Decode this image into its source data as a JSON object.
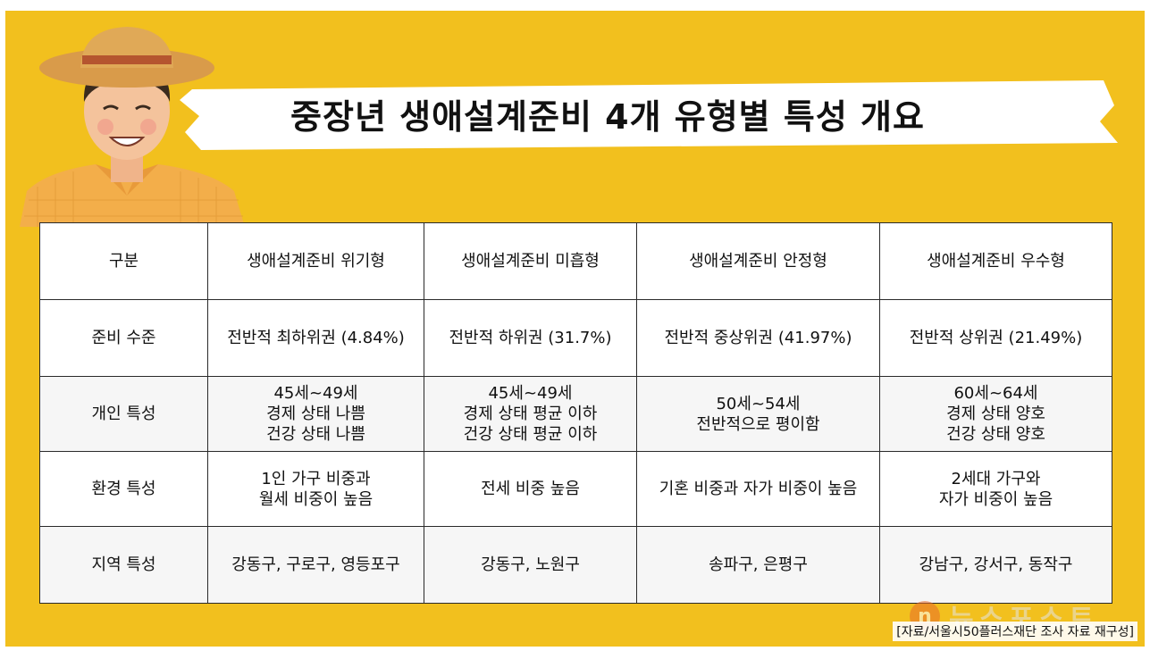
{
  "title": "중장년 생애설계준비 4개 유형별 특성 개요",
  "colors": {
    "background": "#f2c01e",
    "border": "#2a2a2a",
    "title_text": "#111111"
  },
  "table": {
    "headers": [
      "구분",
      "생애설계준비 위기형",
      "생애설계준비 미흡형",
      "생애설계준비 안정형",
      "생애설계준비 우수형"
    ],
    "rows": [
      {
        "label": "준비 수준",
        "cells": [
          [
            "전반적 최하위권 (4.84%)"
          ],
          [
            "전반적 하위권 (31.7%)"
          ],
          [
            "전반적 중상위권 (41.97%)"
          ],
          [
            "전반적 상위권 (21.49%)"
          ]
        ]
      },
      {
        "label": "개인 특성",
        "cells": [
          [
            "45세~49세",
            "경제 상태 나쁨",
            "건강 상태 나쁨"
          ],
          [
            "45세~49세",
            "경제 상태 평균 이하",
            "건강 상태 평균 이하"
          ],
          [
            "50세~54세",
            "전반적으로 평이함"
          ],
          [
            "60세~64세",
            "경제 상태 양호",
            "건강 상태 양호"
          ]
        ]
      },
      {
        "label": "환경 특성",
        "cells": [
          [
            "1인 가구 비중과",
            "월세 비중이 높음"
          ],
          [
            "전세 비중 높음"
          ],
          [
            "기혼 비중과 자가 비중이 높음"
          ],
          [
            "2세대 가구와",
            "자가 비중이 높음"
          ]
        ]
      },
      {
        "label": "지역 특성",
        "cells": [
          [
            "강동구, 구로구, 영등포구"
          ],
          [
            "강동구, 노원구"
          ],
          [
            "송파구, 은평구"
          ],
          [
            "강남구, 강서구, 동작구"
          ]
        ]
      }
    ]
  },
  "source": "[자료/서울시50플러스재단 조사 자료 재구성]",
  "watermark": {
    "logo_letter": "n",
    "text": "뉴스포스트"
  },
  "illustration": {
    "icon": "farmer-icon"
  }
}
